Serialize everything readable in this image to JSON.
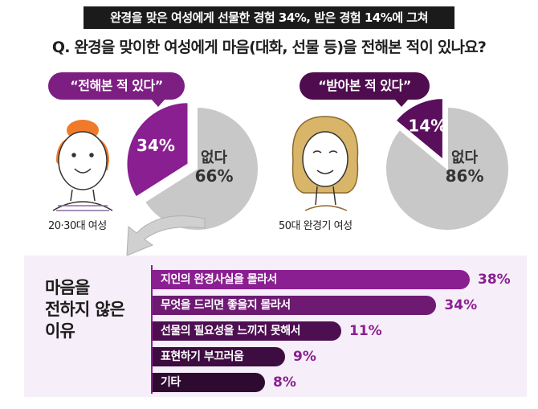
{
  "banner": "완경을 맞은 여성에게 선물한 경험 34%, 받은 경험 14%에 그쳐",
  "question": "Q. 완경을 맞이한 여성에게 마음(대화, 선물 등)을 전해본 적이 있나요?",
  "chart_data": [
    {
      "type": "pie",
      "title": "“전해본 적 있다”",
      "caption": "20·30대 여성",
      "slices": [
        {
          "label": "",
          "value": 34,
          "display": "34%",
          "color": "#8a1f91"
        },
        {
          "label": "없다",
          "value": 66,
          "display": "66%",
          "color": "#c8c8c8"
        }
      ]
    },
    {
      "type": "pie",
      "title": "“받아본 적 있다”",
      "caption": "50대 완경기 여성",
      "slices": [
        {
          "label": "",
          "value": 14,
          "display": "14%",
          "color": "#5a0f5c"
        },
        {
          "label": "없다",
          "value": 86,
          "display": "86%",
          "color": "#c8c8c8"
        }
      ]
    },
    {
      "type": "bar",
      "title": "마음을 전하지 않은 이유",
      "title_lines": [
        "마음을",
        "전하지 않은",
        "이유"
      ],
      "categories": [
        "지인의 완경사실을 몰라서",
        "무엇을 드리면 좋을지 몰라서",
        "선물의 필요성을 느끼지 못해서",
        "표현하기 부끄러움",
        "기타"
      ],
      "values": [
        38,
        34,
        11,
        9,
        8
      ],
      "display": [
        "38%",
        "34%",
        "11%",
        "9%",
        "8%"
      ],
      "colors": [
        "#8a1f91",
        "#6e1a73",
        "#4e0f52",
        "#3d0c40",
        "#2e0a31"
      ]
    }
  ]
}
